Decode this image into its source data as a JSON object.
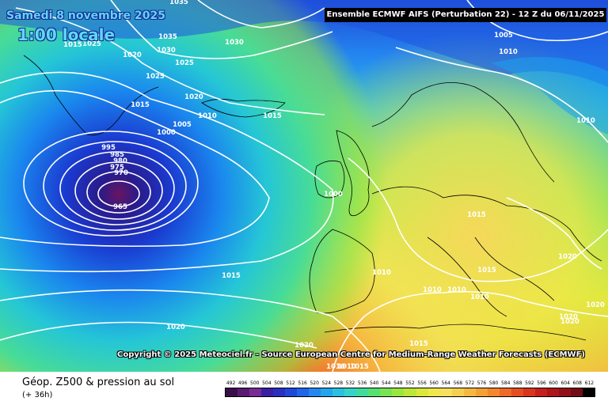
{
  "header": {
    "date": "Samedi 8 novembre 2025",
    "local_time": "1:00 locale",
    "model_run": "Ensemble ECMWF AIFS  (Perturbation 22)  - 12 Z du 06/11/2025"
  },
  "copyright": "Copyright © 2025 Meteociel.fr - Source European Centre for Medium-Range Weather Forecasts (ECMWF)",
  "footer": {
    "title": "Géop. Z500 & pression au sol",
    "lead_time": "(+ 36h)"
  },
  "scale": {
    "labels": [
      "492",
      "496",
      "500",
      "504",
      "508",
      "512",
      "516",
      "520",
      "524",
      "528",
      "532",
      "536",
      "540",
      "544",
      "548",
      "552",
      "556",
      "560",
      "564",
      "568",
      "572",
      "576",
      "580",
      "584",
      "588",
      "592",
      "596",
      "600",
      "604",
      "608",
      "612"
    ],
    "colors": [
      "#3a0d4a",
      "#5a1a70",
      "#7a2a95",
      "#3b1fa3",
      "#2a2fc0",
      "#1f48d8",
      "#1f66e8",
      "#2486f0",
      "#23a5ee",
      "#2bc0e0",
      "#35d4c8",
      "#3fdc9c",
      "#56e070",
      "#78e454",
      "#9be63e",
      "#bde636",
      "#dbe83a",
      "#f0e84a",
      "#f6e05e",
      "#f6cf4e",
      "#f6b840",
      "#f5a036",
      "#f3862e",
      "#ee6a28",
      "#e54e22",
      "#d9341e",
      "#c6201c",
      "#ae151a",
      "#921017",
      "#720c14",
      "#000000"
    ]
  },
  "isobars": [
    {
      "text": "1035",
      "hpa": 1035
    },
    {
      "text": "1035",
      "hpa": 1035
    },
    {
      "text": "1030",
      "hpa": 1030
    },
    {
      "text": "1030",
      "hpa": 1030
    },
    {
      "text": "1025",
      "hpa": 1025
    },
    {
      "text": "1020",
      "hpa": 1020
    },
    {
      "text": "1025",
      "hpa": 1025
    },
    {
      "text": "1025",
      "hpa": 1025
    },
    {
      "text": "1020",
      "hpa": 1020
    },
    {
      "text": "1015",
      "hpa": 1015
    },
    {
      "text": "1010",
      "hpa": 1010
    },
    {
      "text": "1005",
      "hpa": 1005
    },
    {
      "text": "1000",
      "hpa": 1000
    },
    {
      "text": "1015",
      "hpa": 1015
    },
    {
      "text": "995",
      "hpa": 995
    },
    {
      "text": "985",
      "hpa": 985
    },
    {
      "text": "980",
      "hpa": 980
    },
    {
      "text": "975",
      "hpa": 975
    },
    {
      "text": "970",
      "hpa": 970
    },
    {
      "text": "965",
      "hpa": 965
    },
    {
      "text": "1000",
      "hpa": 1000
    },
    {
      "text": "1005",
      "hpa": 1005
    },
    {
      "text": "1010",
      "hpa": 1010
    },
    {
      "text": "1010",
      "hpa": 1010
    },
    {
      "text": "1015",
      "hpa": 1015
    },
    {
      "text": "1020",
      "hpa": 1020
    },
    {
      "text": "1010",
      "hpa": 1010
    },
    {
      "text": "1015",
      "hpa": 1015
    },
    {
      "text": "1010",
      "hpa": 1010
    },
    {
      "text": "1010",
      "hpa": 1010
    },
    {
      "text": "1010",
      "hpa": 1010
    },
    {
      "text": "1015",
      "hpa": 1015
    },
    {
      "text": "1020",
      "hpa": 1020
    },
    {
      "text": "1020",
      "hpa": 1020
    },
    {
      "text": "1020",
      "hpa": 1020
    },
    {
      "text": "1015",
      "hpa": 1015
    },
    {
      "text": "1020",
      "hpa": 1020
    },
    {
      "text": "1020",
      "hpa": 1020
    },
    {
      "text": "1015",
      "hpa": 1015
    },
    {
      "text": "1010",
      "hpa": 1010
    },
    {
      "text": "1010",
      "hpa": 1010
    },
    {
      "text": "1015",
      "hpa": 1015
    }
  ]
}
